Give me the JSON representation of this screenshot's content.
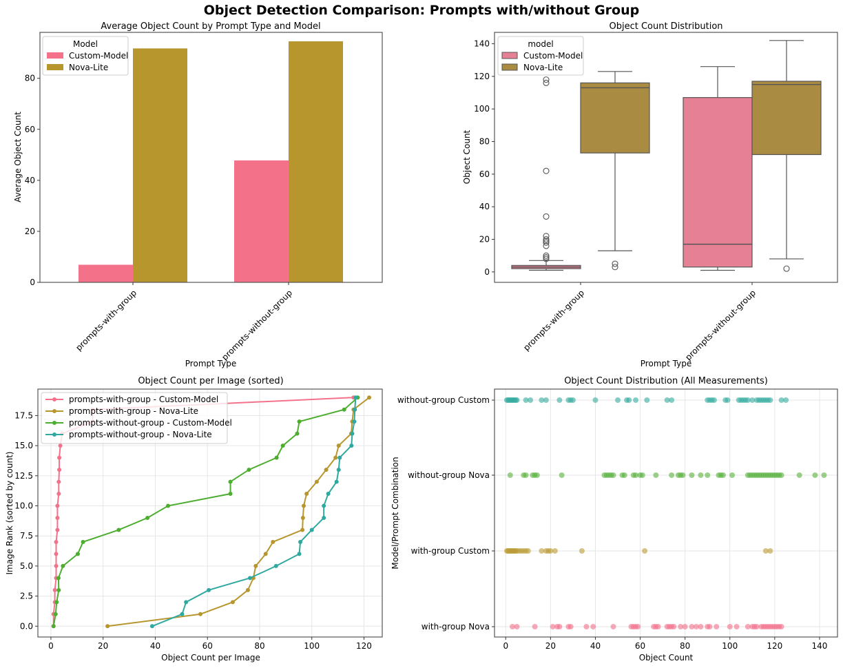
{
  "figure": {
    "title": "Object Detection Comparison: Prompts with/without Group"
  },
  "colors": {
    "custom_model": "#f3728a",
    "nova_lite": "#b8962e",
    "custom_model_box": "#e68094",
    "nova_lite_box": "#aa8b42",
    "without_custom_line": "#4cad2f",
    "without_nova_line": "#2fa8a0",
    "scatter_without_custom": "#36aba0",
    "scatter_without_nova": "#56b13c",
    "scatter_with_custom": "#bb9b36",
    "scatter_with_nova": "#f1708b",
    "grid": "#e6e6e6",
    "axis": "#555555"
  },
  "chart_data": [
    {
      "type": "bar",
      "title": "Average Object Count by Prompt Type and Model",
      "xlabel": "Prompt Type",
      "ylabel": "Average Object Count",
      "categories": [
        "prompts-with-group",
        "prompts-without-group"
      ],
      "series": [
        {
          "name": "Custom-Model",
          "values": [
            6.9,
            47.8
          ]
        },
        {
          "name": "Nova-Lite",
          "values": [
            91.7,
            94.5
          ]
        }
      ],
      "ylim": [
        0,
        98
      ],
      "yticks": [
        0,
        20,
        40,
        60,
        80
      ],
      "legend": {
        "title": "Model",
        "position": "top-left"
      },
      "grid": false
    },
    {
      "type": "box",
      "title": "Object Count Distribution",
      "xlabel": "Prompt Type",
      "ylabel": "Object Count",
      "categories": [
        "prompts-with-group",
        "prompts-without-group"
      ],
      "ylim": [
        -6.4,
        147
      ],
      "yticks": [
        0,
        20,
        40,
        60,
        80,
        100,
        120,
        140
      ],
      "legend": {
        "title": "model",
        "position": "top-left",
        "entries": [
          "Custom-Model",
          "Nova-Lite"
        ]
      },
      "grid": false,
      "boxes": [
        {
          "category": "prompts-with-group",
          "model": "Custom-Model",
          "whisker_low": 1,
          "q1": 2,
          "median": 3,
          "q3": 4,
          "whisker_high": 7,
          "outliers": [
            8,
            9,
            10,
            16,
            18,
            19,
            20,
            22,
            34,
            62,
            116,
            118
          ]
        },
        {
          "category": "prompts-with-group",
          "model": "Nova-Lite",
          "whisker_low": 13,
          "q1": 73,
          "median": 113,
          "q3": 116,
          "whisker_high": 123,
          "outliers": [
            3,
            5
          ]
        },
        {
          "category": "prompts-without-group",
          "model": "Custom-Model",
          "whisker_low": 1,
          "q1": 3,
          "median": 17,
          "q3": 107,
          "whisker_high": 126,
          "outliers": []
        },
        {
          "category": "prompts-without-group",
          "model": "Nova-Lite",
          "whisker_low": 8,
          "q1": 72,
          "median": 115,
          "q3": 117,
          "whisker_high": 142,
          "outliers": [
            2
          ]
        }
      ]
    },
    {
      "type": "line",
      "title": "Object Count per Image (sorted)",
      "xlabel": "Object Count per Image",
      "ylabel": "Image Rank (sorted by count)",
      "xlim": [
        -5,
        127
      ],
      "ylim": [
        -0.9,
        19.7
      ],
      "xticks": [
        0,
        20,
        40,
        60,
        80,
        100,
        120
      ],
      "yticks": [
        0.0,
        2.5,
        5.0,
        7.5,
        10.0,
        12.5,
        15.0,
        17.5
      ],
      "legend": {
        "position": "top-left"
      },
      "grid": true,
      "series": [
        {
          "name": "prompts-with-group - Custom-Model",
          "x": [
            1,
            1,
            1.5,
            1.5,
            2,
            2,
            2,
            2,
            2.5,
            2.5,
            2.5,
            3,
            3,
            3.2,
            3.2,
            3.6,
            4.3,
            16,
            16,
            116
          ],
          "y": [
            0,
            1,
            2,
            3,
            4,
            5,
            6,
            7,
            8,
            9,
            10,
            11,
            12,
            13,
            14,
            15,
            16,
            17,
            18,
            19
          ]
        },
        {
          "name": "prompts-with-group - Nova-Lite",
          "x": [
            21.7,
            57.3,
            69.7,
            75.5,
            77.6,
            78.5,
            82.3,
            85.1,
            96.4,
            96.6,
            96.9,
            98.0,
            101.9,
            105.5,
            109.1,
            110.3,
            115.1,
            115.5,
            116,
            122
          ],
          "y": [
            0,
            1,
            2,
            3,
            4,
            5,
            6,
            7,
            8,
            9,
            10,
            11,
            12,
            13,
            14,
            15,
            16,
            17,
            18,
            19
          ]
        },
        {
          "name": "prompts-without-group - Custom-Model",
          "x": [
            1.0,
            1.8,
            2.2,
            3.0,
            2.9,
            4.6,
            10.3,
            12.3,
            26.0,
            37.0,
            44.9,
            68.8,
            68.8,
            75.9,
            86.5,
            88.9,
            94.4,
            95.2,
            112.4,
            117.6
          ],
          "y": [
            0,
            1,
            2,
            3,
            4,
            5,
            6,
            7,
            8,
            9,
            10,
            11,
            12,
            13,
            14,
            15,
            16,
            17,
            18,
            19
          ]
        },
        {
          "name": "prompts-without-group - Nova-Lite",
          "x": [
            38.8,
            50.3,
            51.8,
            60.5,
            76.3,
            86.3,
            95.2,
            95.6,
            100.0,
            104.6,
            104.6,
            106.3,
            109.5,
            110.3,
            110.7,
            115.2,
            115.5,
            116.3,
            116.5,
            116.8
          ],
          "y": [
            0,
            1,
            2,
            3,
            4,
            5,
            6,
            7,
            8,
            9,
            10,
            11,
            12,
            13,
            14,
            15,
            16,
            17,
            18,
            19
          ]
        }
      ]
    },
    {
      "type": "scatter",
      "title": "Object Count Distribution (All Measurements)",
      "xlabel": "Object Count",
      "ylabel": "Model/Prompt Combination",
      "xlim": [
        -5,
        148
      ],
      "xticks": [
        0,
        20,
        40,
        60,
        80,
        100,
        120,
        140
      ],
      "categories": [
        "with-group Nova",
        "with-group Custom",
        "without-group Nova",
        "without-group Custom"
      ],
      "grid": true,
      "series": [
        {
          "name": "without-group Custom",
          "values": [
            0.5,
            1,
            1.5,
            2,
            2.5,
            3,
            3.5,
            4,
            4.5,
            5,
            9,
            11,
            16,
            18,
            24,
            28,
            29,
            30,
            40,
            50,
            54,
            55,
            58,
            63,
            72,
            74,
            90,
            91,
            92,
            93,
            98,
            99,
            104,
            105,
            106,
            107,
            108,
            110,
            112,
            113,
            114,
            115,
            116,
            117,
            118,
            123,
            125
          ]
        },
        {
          "name": "without-group Nova",
          "values": [
            2,
            8,
            9,
            12,
            13,
            14,
            25,
            44,
            45,
            46,
            47,
            48,
            52,
            53,
            57,
            58,
            60,
            61,
            67,
            74,
            77,
            78,
            79,
            83,
            87,
            90,
            95,
            96,
            97,
            101,
            108,
            109,
            110,
            111,
            112,
            113,
            114,
            115,
            116,
            117,
            118,
            119,
            120,
            121,
            122,
            123,
            131,
            138,
            142
          ]
        },
        {
          "name": "with-group Custom",
          "values": [
            0.5,
            1,
            1.5,
            2,
            2.5,
            3,
            3.5,
            4,
            4.5,
            5,
            6,
            7,
            8,
            9,
            10,
            16,
            18,
            19,
            20,
            22,
            34,
            62,
            116,
            118
          ]
        },
        {
          "name": "with-group Nova",
          "values": [
            3,
            5,
            13,
            21,
            23,
            24,
            28,
            29,
            36,
            39,
            48,
            56,
            57,
            58,
            59,
            66,
            67,
            68,
            72,
            73,
            74,
            75,
            78,
            80,
            83,
            85,
            87,
            90,
            91,
            94,
            100,
            103,
            108,
            110,
            111,
            112,
            114,
            115,
            116,
            117,
            118,
            119,
            120,
            121,
            122,
            123
          ]
        }
      ]
    }
  ]
}
